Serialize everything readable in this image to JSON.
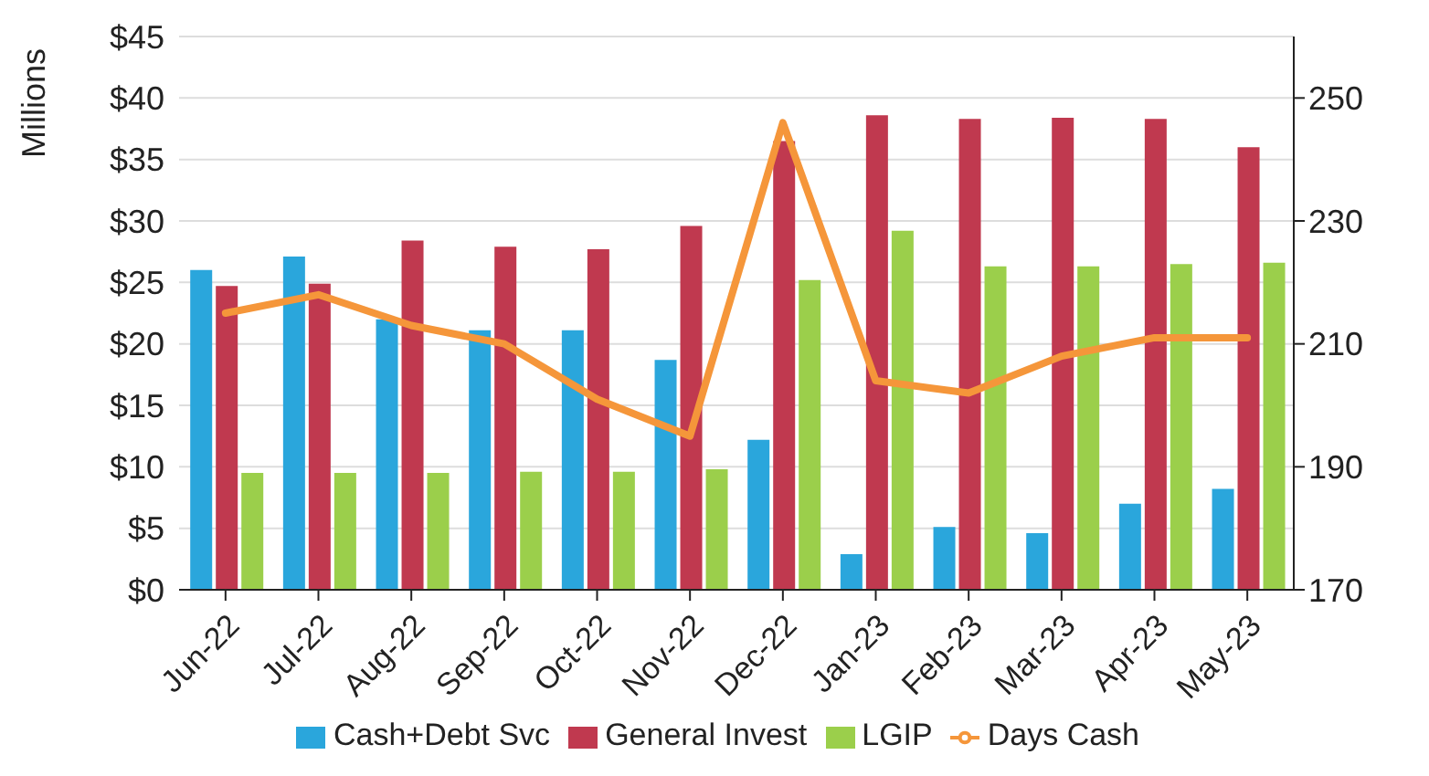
{
  "chart_data": {
    "type": "bar",
    "ylabel": "Millions",
    "categories": [
      "Jun-22",
      "Jul-22",
      "Aug-22",
      "Sep-22",
      "Oct-22",
      "Nov-22",
      "Dec-22",
      "Jan-23",
      "Feb-23",
      "Mar-23",
      "Apr-23",
      "May-23"
    ],
    "series": [
      {
        "name": "Cash+Debt Svc",
        "color": "#2aa6dc",
        "values": [
          26.0,
          27.1,
          22.0,
          21.1,
          21.1,
          18.7,
          12.2,
          2.9,
          5.1,
          4.6,
          7.0,
          8.2
        ]
      },
      {
        "name": "General Invest",
        "color": "#c0394f",
        "values": [
          24.7,
          24.9,
          28.4,
          27.9,
          27.7,
          29.6,
          36.5,
          38.6,
          38.3,
          38.4,
          38.3,
          36.0
        ]
      },
      {
        "name": "LGIP",
        "color": "#9bcf4b",
        "values": [
          9.5,
          9.5,
          9.5,
          9.6,
          9.6,
          9.8,
          25.2,
          29.2,
          26.3,
          26.3,
          26.5,
          26.6
        ]
      },
      {
        "name": "Days Cash",
        "type": "line",
        "axis": "y2",
        "color": "#f5963a",
        "values": [
          215,
          218,
          213,
          210,
          201,
          195,
          246,
          204,
          202,
          208,
          211,
          211
        ]
      }
    ],
    "ylim": [
      0,
      45
    ],
    "yticks": [
      {
        "value": 0,
        "label": "$0"
      },
      {
        "value": 5,
        "label": "$5"
      },
      {
        "value": 10,
        "label": "$10"
      },
      {
        "value": 15,
        "label": "$15"
      },
      {
        "value": 20,
        "label": "$20"
      },
      {
        "value": 25,
        "label": "$25"
      },
      {
        "value": 30,
        "label": "$30"
      },
      {
        "value": 35,
        "label": "$35"
      },
      {
        "value": 40,
        "label": "$40"
      },
      {
        "value": 45,
        "label": "$45"
      }
    ],
    "y2lim": [
      170,
      260
    ],
    "y2ticks": [
      170,
      190,
      210,
      230,
      250
    ],
    "grid": "y",
    "legend": "bottom",
    "marker": "none"
  }
}
